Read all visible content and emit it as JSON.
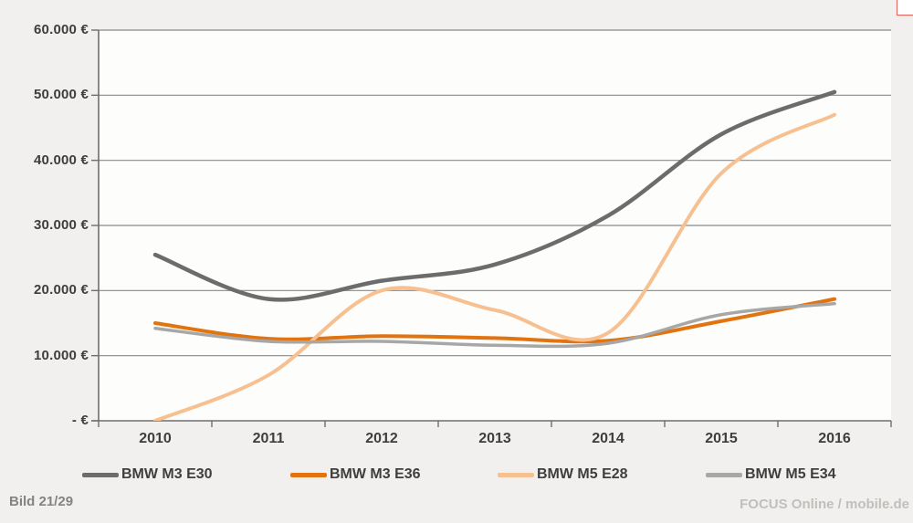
{
  "footer": {
    "left": "Bild 21/29",
    "right": "FOCUS Online / mobile.de"
  },
  "corner_fragment": {
    "border_color": "#e0685f"
  },
  "colors": {
    "page_background": "#f1f0ee",
    "plot_background": "#fdfdfc",
    "gridline": "#898989",
    "axis": "#6e6e6e",
    "label_text": "#3e3e3e"
  },
  "chart_data": {
    "type": "line",
    "title": "",
    "xlabel": "",
    "ylabel": "",
    "categories": [
      "2010",
      "2011",
      "2012",
      "2013",
      "2014",
      "2015",
      "2016"
    ],
    "x": [
      2010,
      2011,
      2012,
      2013,
      2014,
      2015,
      2016
    ],
    "y_ticks": [
      0,
      10000,
      20000,
      30000,
      40000,
      50000,
      60000
    ],
    "y_tick_labels": [
      "- €",
      "10.000 €",
      "20.000 €",
      "30.000 €",
      "40.000 €",
      "50.000 €",
      "60.000 €"
    ],
    "ylim": [
      0,
      60000
    ],
    "grid": true,
    "smooth": true,
    "legend_position": "bottom",
    "series": [
      {
        "name": "BMW M3 E30",
        "color": "#6c6c6c",
        "width": 4.5,
        "values": [
          25500,
          18700,
          21500,
          24000,
          31500,
          44000,
          50500
        ]
      },
      {
        "name": "BMW M3 E36",
        "color": "#e1740f",
        "width": 4,
        "values": [
          15000,
          12600,
          13000,
          12700,
          12300,
          15300,
          18700
        ]
      },
      {
        "name": "BMW M5 E28",
        "color": "#f6c091",
        "width": 4,
        "values": [
          0,
          7000,
          20000,
          17000,
          13500,
          38000,
          47000
        ]
      },
      {
        "name": "BMW M5 E34",
        "color": "#a7a7a7",
        "width": 3.5,
        "values": [
          14200,
          12200,
          12200,
          11600,
          11900,
          16300,
          18000
        ]
      }
    ]
  }
}
